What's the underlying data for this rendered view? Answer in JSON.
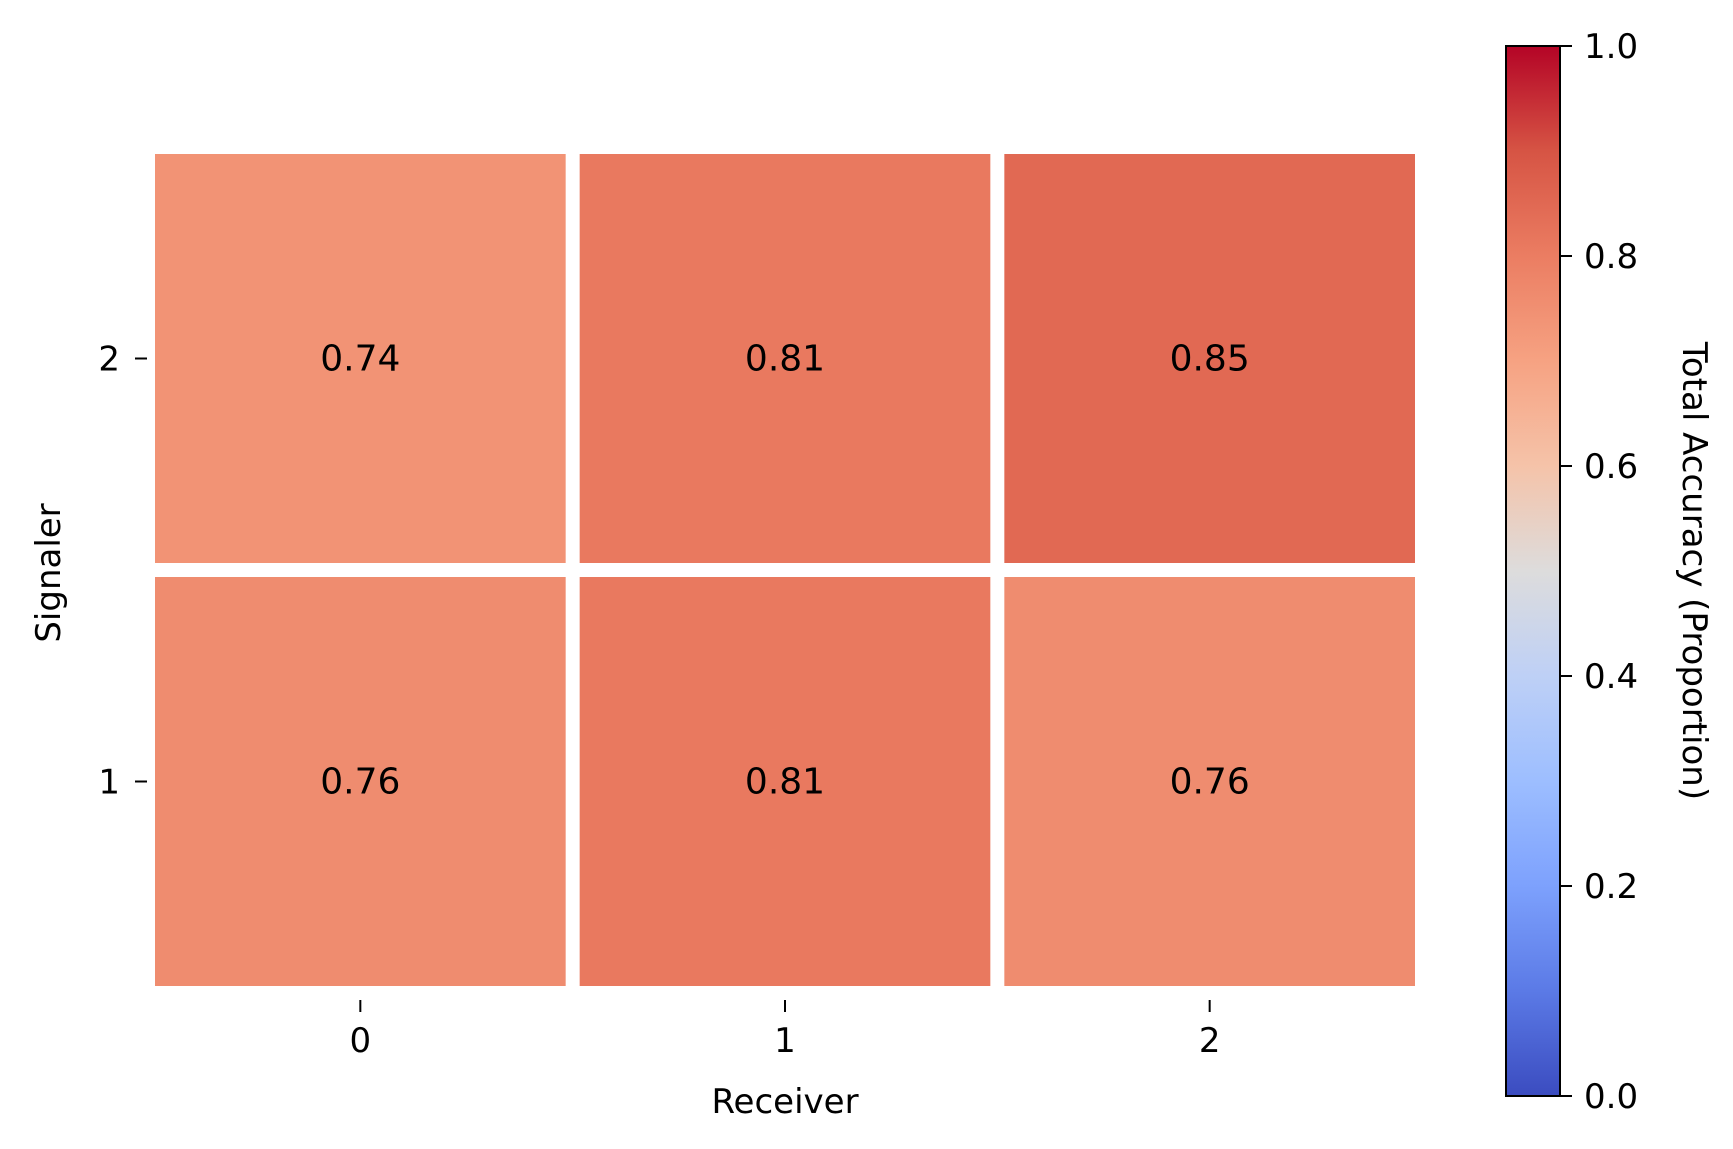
{
  "chart_data": {
    "type": "heatmap",
    "title": "",
    "xlabel": "Receiver",
    "ylabel": "Signaler",
    "x_categories": [
      "0",
      "1",
      "2"
    ],
    "y_categories": [
      "2",
      "1"
    ],
    "values": [
      [
        0.74,
        0.81,
        0.85
      ],
      [
        0.76,
        0.81,
        0.76
      ]
    ],
    "cell_labels": [
      [
        "0.74",
        "0.81",
        "0.85"
      ],
      [
        "0.76",
        "0.81",
        "0.76"
      ]
    ],
    "colormap": "coolwarm",
    "vmin": 0.0,
    "vmax": 1.0,
    "colorbar": {
      "label": "Total Accuracy (Proportion)",
      "ticks": [
        0.0,
        0.2,
        0.4,
        0.6,
        0.8,
        1.0
      ],
      "tick_labels": [
        "0.0",
        "0.2",
        "0.4",
        "0.6",
        "0.8",
        "1.0"
      ]
    },
    "grid": false,
    "cell_edge_color": "#ffffff"
  }
}
